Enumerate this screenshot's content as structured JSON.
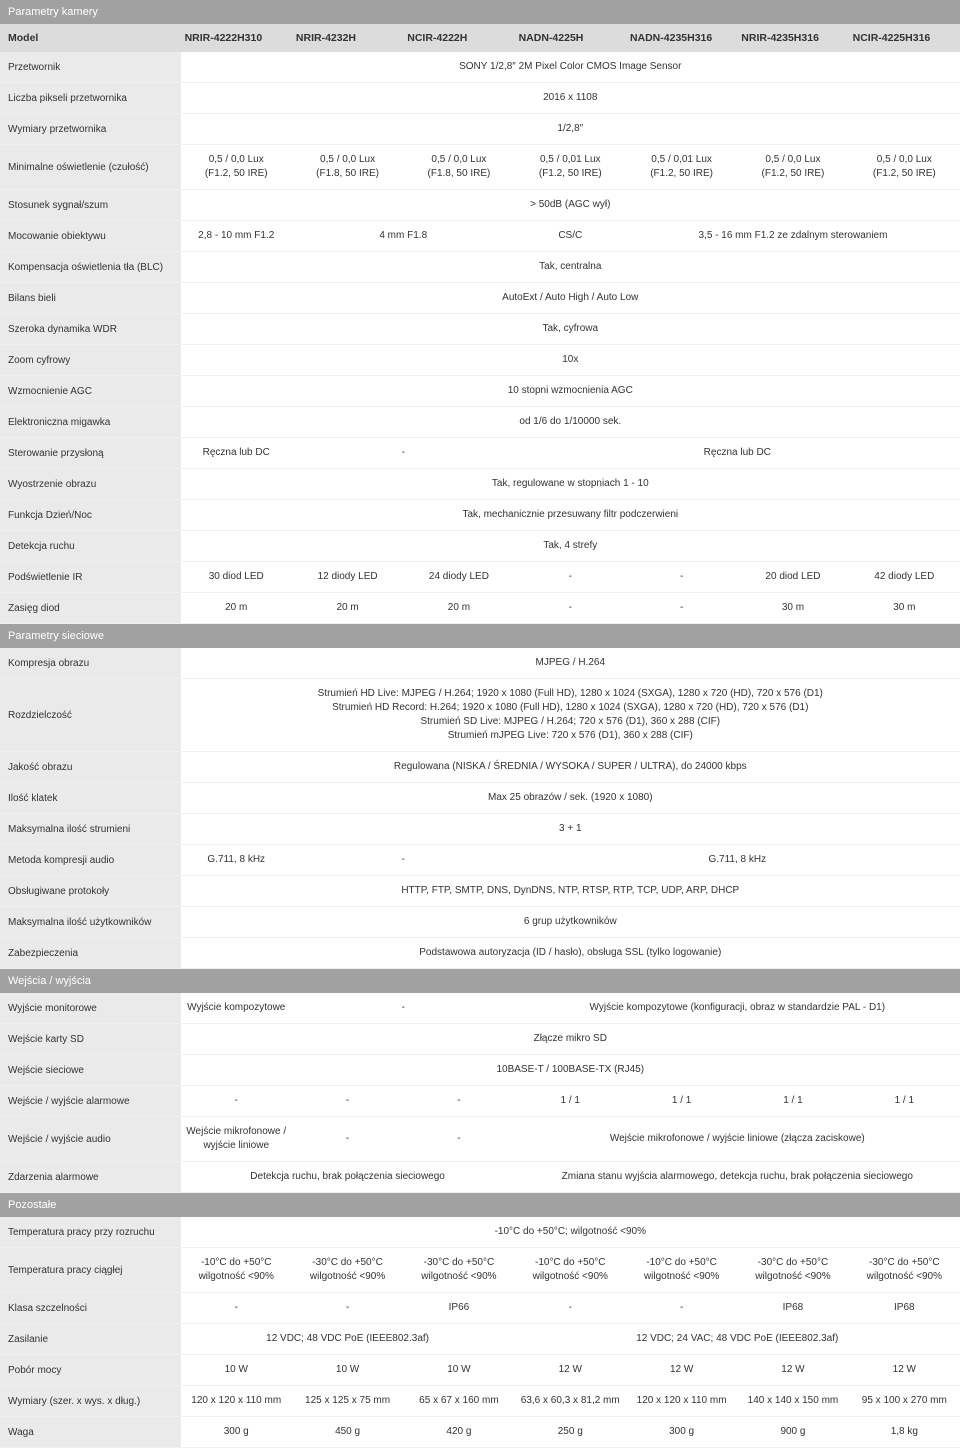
{
  "models": [
    "NRIR-4222H310",
    "NRIR-4232H",
    "NCIR-4222H",
    "NADN-4225H",
    "NADN-4235H316",
    "NRIR-4235H316",
    "NCIR-4225H316"
  ],
  "sections": [
    {
      "title": "Parametry kamery",
      "showModels": true,
      "modelLabel": "Model",
      "rows": [
        {
          "label": "Przetwornik",
          "cells": [
            {
              "span": 7,
              "text": "SONY 1/2,8″ 2M Pixel Color CMOS Image Sensor"
            }
          ]
        },
        {
          "label": "Liczba pikseli przetwornika",
          "cells": [
            {
              "span": 7,
              "text": "2016 x 1108"
            }
          ]
        },
        {
          "label": "Wymiary przetwornika",
          "cells": [
            {
              "span": 7,
              "text": "1/2,8″"
            }
          ]
        },
        {
          "label": "Minimalne oświetlenie (czułość)",
          "cells": [
            {
              "span": 1,
              "text": "0,5 / 0,0 Lux\n(F1.2, 50 IRE)"
            },
            {
              "span": 1,
              "text": "0,5 / 0,0 Lux\n(F1.8, 50 IRE)"
            },
            {
              "span": 1,
              "text": "0,5 / 0,0 Lux\n(F1.8, 50 IRE)"
            },
            {
              "span": 1,
              "text": "0,5 / 0,01 Lux\n(F1.2, 50 IRE)"
            },
            {
              "span": 1,
              "text": "0,5 / 0,01 Lux\n(F1.2, 50 IRE)"
            },
            {
              "span": 1,
              "text": "0,5 / 0,0 Lux\n(F1.2, 50 IRE)"
            },
            {
              "span": 1,
              "text": "0,5 / 0,0 Lux\n(F1.2, 50 IRE)"
            }
          ]
        },
        {
          "label": "Stosunek sygnał/szum",
          "cells": [
            {
              "span": 7,
              "text": "> 50dB (AGC wył)"
            }
          ]
        },
        {
          "label": "Mocowanie obiektywu",
          "cells": [
            {
              "span": 1,
              "text": "2,8 - 10 mm F1.2"
            },
            {
              "span": 2,
              "text": "4 mm F1.8"
            },
            {
              "span": 1,
              "text": "CS/C"
            },
            {
              "span": 3,
              "text": "3,5 - 16 mm F1.2 ze zdalnym sterowaniem"
            }
          ]
        },
        {
          "label": "Kompensacja oświetlenia tła (BLC)",
          "cells": [
            {
              "span": 7,
              "text": "Tak, centralna"
            }
          ]
        },
        {
          "label": "Bilans bieli",
          "cells": [
            {
              "span": 7,
              "text": "AutoExt / Auto High / Auto Low"
            }
          ]
        },
        {
          "label": "Szeroka dynamika WDR",
          "cells": [
            {
              "span": 7,
              "text": "Tak, cyfrowa"
            }
          ]
        },
        {
          "label": "Zoom cyfrowy",
          "cells": [
            {
              "span": 7,
              "text": "10x"
            }
          ]
        },
        {
          "label": "Wzmocnienie AGC",
          "cells": [
            {
              "span": 7,
              "text": "10 stopni wzmocnienia AGC"
            }
          ]
        },
        {
          "label": "Elektroniczna migawka",
          "cells": [
            {
              "span": 7,
              "text": "od 1/6 do 1/10000 sek."
            }
          ]
        },
        {
          "label": "Sterowanie przysłoną",
          "cells": [
            {
              "span": 1,
              "text": "Ręczna lub DC"
            },
            {
              "span": 2,
              "text": "-"
            },
            {
              "span": 4,
              "text": "Ręczna lub DC"
            }
          ]
        },
        {
          "label": "Wyostrzenie obrazu",
          "cells": [
            {
              "span": 7,
              "text": "Tak, regulowane w stopniach 1 - 10"
            }
          ]
        },
        {
          "label": "Funkcja Dzień/Noc",
          "cells": [
            {
              "span": 7,
              "text": "Tak, mechanicznie przesuwany filtr podczerwieni"
            }
          ]
        },
        {
          "label": "Detekcja ruchu",
          "cells": [
            {
              "span": 7,
              "text": "Tak, 4 strefy"
            }
          ]
        },
        {
          "label": "Podświetlenie IR",
          "cells": [
            {
              "span": 1,
              "text": "30 diod LED"
            },
            {
              "span": 1,
              "text": "12 diody LED"
            },
            {
              "span": 1,
              "text": "24 diody LED"
            },
            {
              "span": 1,
              "text": "-"
            },
            {
              "span": 1,
              "text": "-"
            },
            {
              "span": 1,
              "text": "20 diod LED"
            },
            {
              "span": 1,
              "text": "42 diody LED"
            }
          ]
        },
        {
          "label": "Zasięg diod",
          "cells": [
            {
              "span": 1,
              "text": "20 m"
            },
            {
              "span": 1,
              "text": "20 m"
            },
            {
              "span": 1,
              "text": "20 m"
            },
            {
              "span": 1,
              "text": "-"
            },
            {
              "span": 1,
              "text": "-"
            },
            {
              "span": 1,
              "text": "30 m"
            },
            {
              "span": 1,
              "text": "30 m"
            }
          ]
        }
      ]
    },
    {
      "title": "Parametry sieciowe",
      "rows": [
        {
          "label": "Kompresja obrazu",
          "cells": [
            {
              "span": 7,
              "text": "MJPEG / H.264"
            }
          ]
        },
        {
          "label": "Rozdzielczość",
          "cells": [
            {
              "span": 7,
              "text": "Strumień HD Live: MJPEG / H.264; 1920 x 1080 (Full HD), 1280 x 1024 (SXGA), 1280 x 720 (HD), 720 x 576 (D1)\nStrumień HD Record: H.264; 1920 x 1080 (Full HD), 1280 x 1024 (SXGA), 1280 x 720 (HD), 720 x 576 (D1)\nStrumień SD Live: MJPEG / H.264; 720 x 576 (D1), 360 x 288 (CIF)\nStrumień mJPEG Live: 720 x 576 (D1), 360 x 288 (CIF)"
            }
          ]
        },
        {
          "label": "Jakość obrazu",
          "cells": [
            {
              "span": 7,
              "text": "Regulowana (NISKA / ŚREDNIA / WYSOKA / SUPER / ULTRA), do 24000 kbps"
            }
          ]
        },
        {
          "label": "Ilość klatek",
          "cells": [
            {
              "span": 7,
              "text": "Max 25 obrazów / sek. (1920 x 1080)"
            }
          ]
        },
        {
          "label": "Maksymalna ilość strumieni",
          "cells": [
            {
              "span": 7,
              "text": "3 + 1"
            }
          ]
        },
        {
          "label": "Metoda kompresji audio",
          "cells": [
            {
              "span": 1,
              "text": "G.711, 8 kHz"
            },
            {
              "span": 2,
              "text": "-"
            },
            {
              "span": 4,
              "text": "G.711, 8 kHz"
            }
          ]
        },
        {
          "label": "Obsługiwane protokoły",
          "cells": [
            {
              "span": 7,
              "text": "HTTP, FTP, SMTP, DNS, DynDNS, NTP, RTSP, RTP, TCP, UDP, ARP, DHCP"
            }
          ]
        },
        {
          "label": "Maksymalna ilość użytkowników",
          "cells": [
            {
              "span": 7,
              "text": "6 grup użytkowników"
            }
          ]
        },
        {
          "label": "Zabezpieczenia",
          "cells": [
            {
              "span": 7,
              "text": "Podstawowa autoryzacja (ID / hasło), obsługa SSL (tylko logowanie)"
            }
          ]
        }
      ]
    },
    {
      "title": "Wejścia / wyjścia",
      "rows": [
        {
          "label": "Wyjście monitorowe",
          "cells": [
            {
              "span": 1,
              "text": "Wyjście kompozytowe"
            },
            {
              "span": 2,
              "text": "-"
            },
            {
              "span": 4,
              "text": "Wyjście kompozytowe (konfiguracji, obraz w standardzie PAL - D1)"
            }
          ]
        },
        {
          "label": "Wejście karty SD",
          "cells": [
            {
              "span": 7,
              "text": "Złącze mikro SD"
            }
          ]
        },
        {
          "label": "Wejście sieciowe",
          "cells": [
            {
              "span": 7,
              "text": "10BASE-T / 100BASE-TX (RJ45)"
            }
          ]
        },
        {
          "label": "Wejście / wyjście alarmowe",
          "cells": [
            {
              "span": 1,
              "text": "-"
            },
            {
              "span": 1,
              "text": "-"
            },
            {
              "span": 1,
              "text": "-"
            },
            {
              "span": 1,
              "text": "1 / 1"
            },
            {
              "span": 1,
              "text": "1 / 1"
            },
            {
              "span": 1,
              "text": "1 / 1"
            },
            {
              "span": 1,
              "text": "1 / 1"
            }
          ]
        },
        {
          "label": "Wejście / wyjście audio",
          "cells": [
            {
              "span": 1,
              "text": "Wejście mikrofonowe /\nwyjście liniowe"
            },
            {
              "span": 1,
              "text": "-"
            },
            {
              "span": 1,
              "text": "-"
            },
            {
              "span": 4,
              "text": "Wejście mikrofonowe / wyjście liniowe (złącza zaciskowe)"
            }
          ]
        },
        {
          "label": "Zdarzenia alarmowe",
          "cells": [
            {
              "span": 3,
              "text": "Detekcja ruchu, brak połączenia sieciowego"
            },
            {
              "span": 4,
              "text": "Zmiana stanu wyjścia alarmowego, detekcja ruchu, brak połączenia sieciowego"
            }
          ]
        }
      ]
    },
    {
      "title": "Pozostałe",
      "rows": [
        {
          "label": "Temperatura pracy przy rozruchu",
          "cells": [
            {
              "span": 7,
              "text": "-10°C do +50°C; wilgotność <90%"
            }
          ]
        },
        {
          "label": "Temperatura pracy ciągłej",
          "cells": [
            {
              "span": 1,
              "text": "-10°C do +50°C\nwilgotność <90%"
            },
            {
              "span": 1,
              "text": "-30°C do +50°C\nwilgotność <90%"
            },
            {
              "span": 1,
              "text": "-30°C do +50°C\nwilgotność <90%"
            },
            {
              "span": 1,
              "text": "-10°C do +50°C\nwilgotność <90%"
            },
            {
              "span": 1,
              "text": "-10°C do +50°C\nwilgotność <90%"
            },
            {
              "span": 1,
              "text": "-30°C do +50°C\nwilgotność <90%"
            },
            {
              "span": 1,
              "text": "-30°C do +50°C\nwilgotność <90%"
            }
          ]
        },
        {
          "label": "Klasa szczelności",
          "cells": [
            {
              "span": 1,
              "text": "-"
            },
            {
              "span": 1,
              "text": "-"
            },
            {
              "span": 1,
              "text": "IP66"
            },
            {
              "span": 1,
              "text": "-"
            },
            {
              "span": 1,
              "text": "-"
            },
            {
              "span": 1,
              "text": "IP68"
            },
            {
              "span": 1,
              "text": "IP68"
            }
          ]
        },
        {
          "label": "Zasilanie",
          "cells": [
            {
              "span": 3,
              "text": "12 VDC; 48 VDC PoE (IEEE802.3af)"
            },
            {
              "span": 4,
              "text": "12 VDC; 24 VAC; 48 VDC PoE (IEEE802.3af)"
            }
          ]
        },
        {
          "label": "Pobór mocy",
          "cells": [
            {
              "span": 1,
              "text": "10 W"
            },
            {
              "span": 1,
              "text": "10 W"
            },
            {
              "span": 1,
              "text": "10 W"
            },
            {
              "span": 1,
              "text": "12 W"
            },
            {
              "span": 1,
              "text": "12 W"
            },
            {
              "span": 1,
              "text": "12 W"
            },
            {
              "span": 1,
              "text": "12 W"
            }
          ]
        },
        {
          "label": "Wymiary (szer. x wys. x dług.)",
          "cells": [
            {
              "span": 1,
              "text": "120 x 120 x 110 mm"
            },
            {
              "span": 1,
              "text": "125 x 125 x 75 mm"
            },
            {
              "span": 1,
              "text": "65 x 67 x 160 mm"
            },
            {
              "span": 1,
              "text": "63,6 x 60,3 x 81,2 mm"
            },
            {
              "span": 1,
              "text": "120 x 120 x 110 mm"
            },
            {
              "span": 1,
              "text": "140 x 140 x 150 mm"
            },
            {
              "span": 1,
              "text": "95 x 100 x 270 mm"
            }
          ]
        },
        {
          "label": "Waga",
          "cells": [
            {
              "span": 1,
              "text": "300 g"
            },
            {
              "span": 1,
              "text": "450 g"
            },
            {
              "span": 1,
              "text": "420 g"
            },
            {
              "span": 1,
              "text": "250 g"
            },
            {
              "span": 1,
              "text": "300 g"
            },
            {
              "span": 1,
              "text": "900 g"
            },
            {
              "span": 1,
              "text": "1,8 kg"
            }
          ]
        }
      ]
    }
  ]
}
